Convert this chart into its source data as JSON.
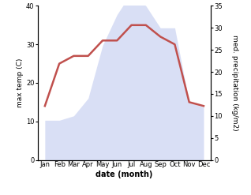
{
  "months": [
    "Jan",
    "Feb",
    "Mar",
    "Apr",
    "May",
    "Jun",
    "Jul",
    "Aug",
    "Sep",
    "Oct",
    "Nov",
    "Dec"
  ],
  "temperature": [
    14,
    25,
    27,
    27,
    31,
    31,
    35,
    35,
    32,
    30,
    15,
    14
  ],
  "precipitation": [
    9,
    9,
    10,
    14,
    26,
    33,
    38,
    35,
    30,
    30,
    13,
    12
  ],
  "temp_color": "#c0504d",
  "precip_color_fill": "#c5cef0",
  "left_ylim": [
    0,
    40
  ],
  "right_ylim": [
    0,
    35
  ],
  "left_yticks": [
    0,
    10,
    20,
    30,
    40
  ],
  "right_yticks": [
    0,
    5,
    10,
    15,
    20,
    25,
    30,
    35
  ],
  "left_ylabel": "max temp (C)",
  "right_ylabel": "med. precipitation (kg/m2)",
  "xlabel": "date (month)",
  "background_color": "#ffffff",
  "temp_linewidth": 1.8,
  "precip_alpha": 0.65
}
